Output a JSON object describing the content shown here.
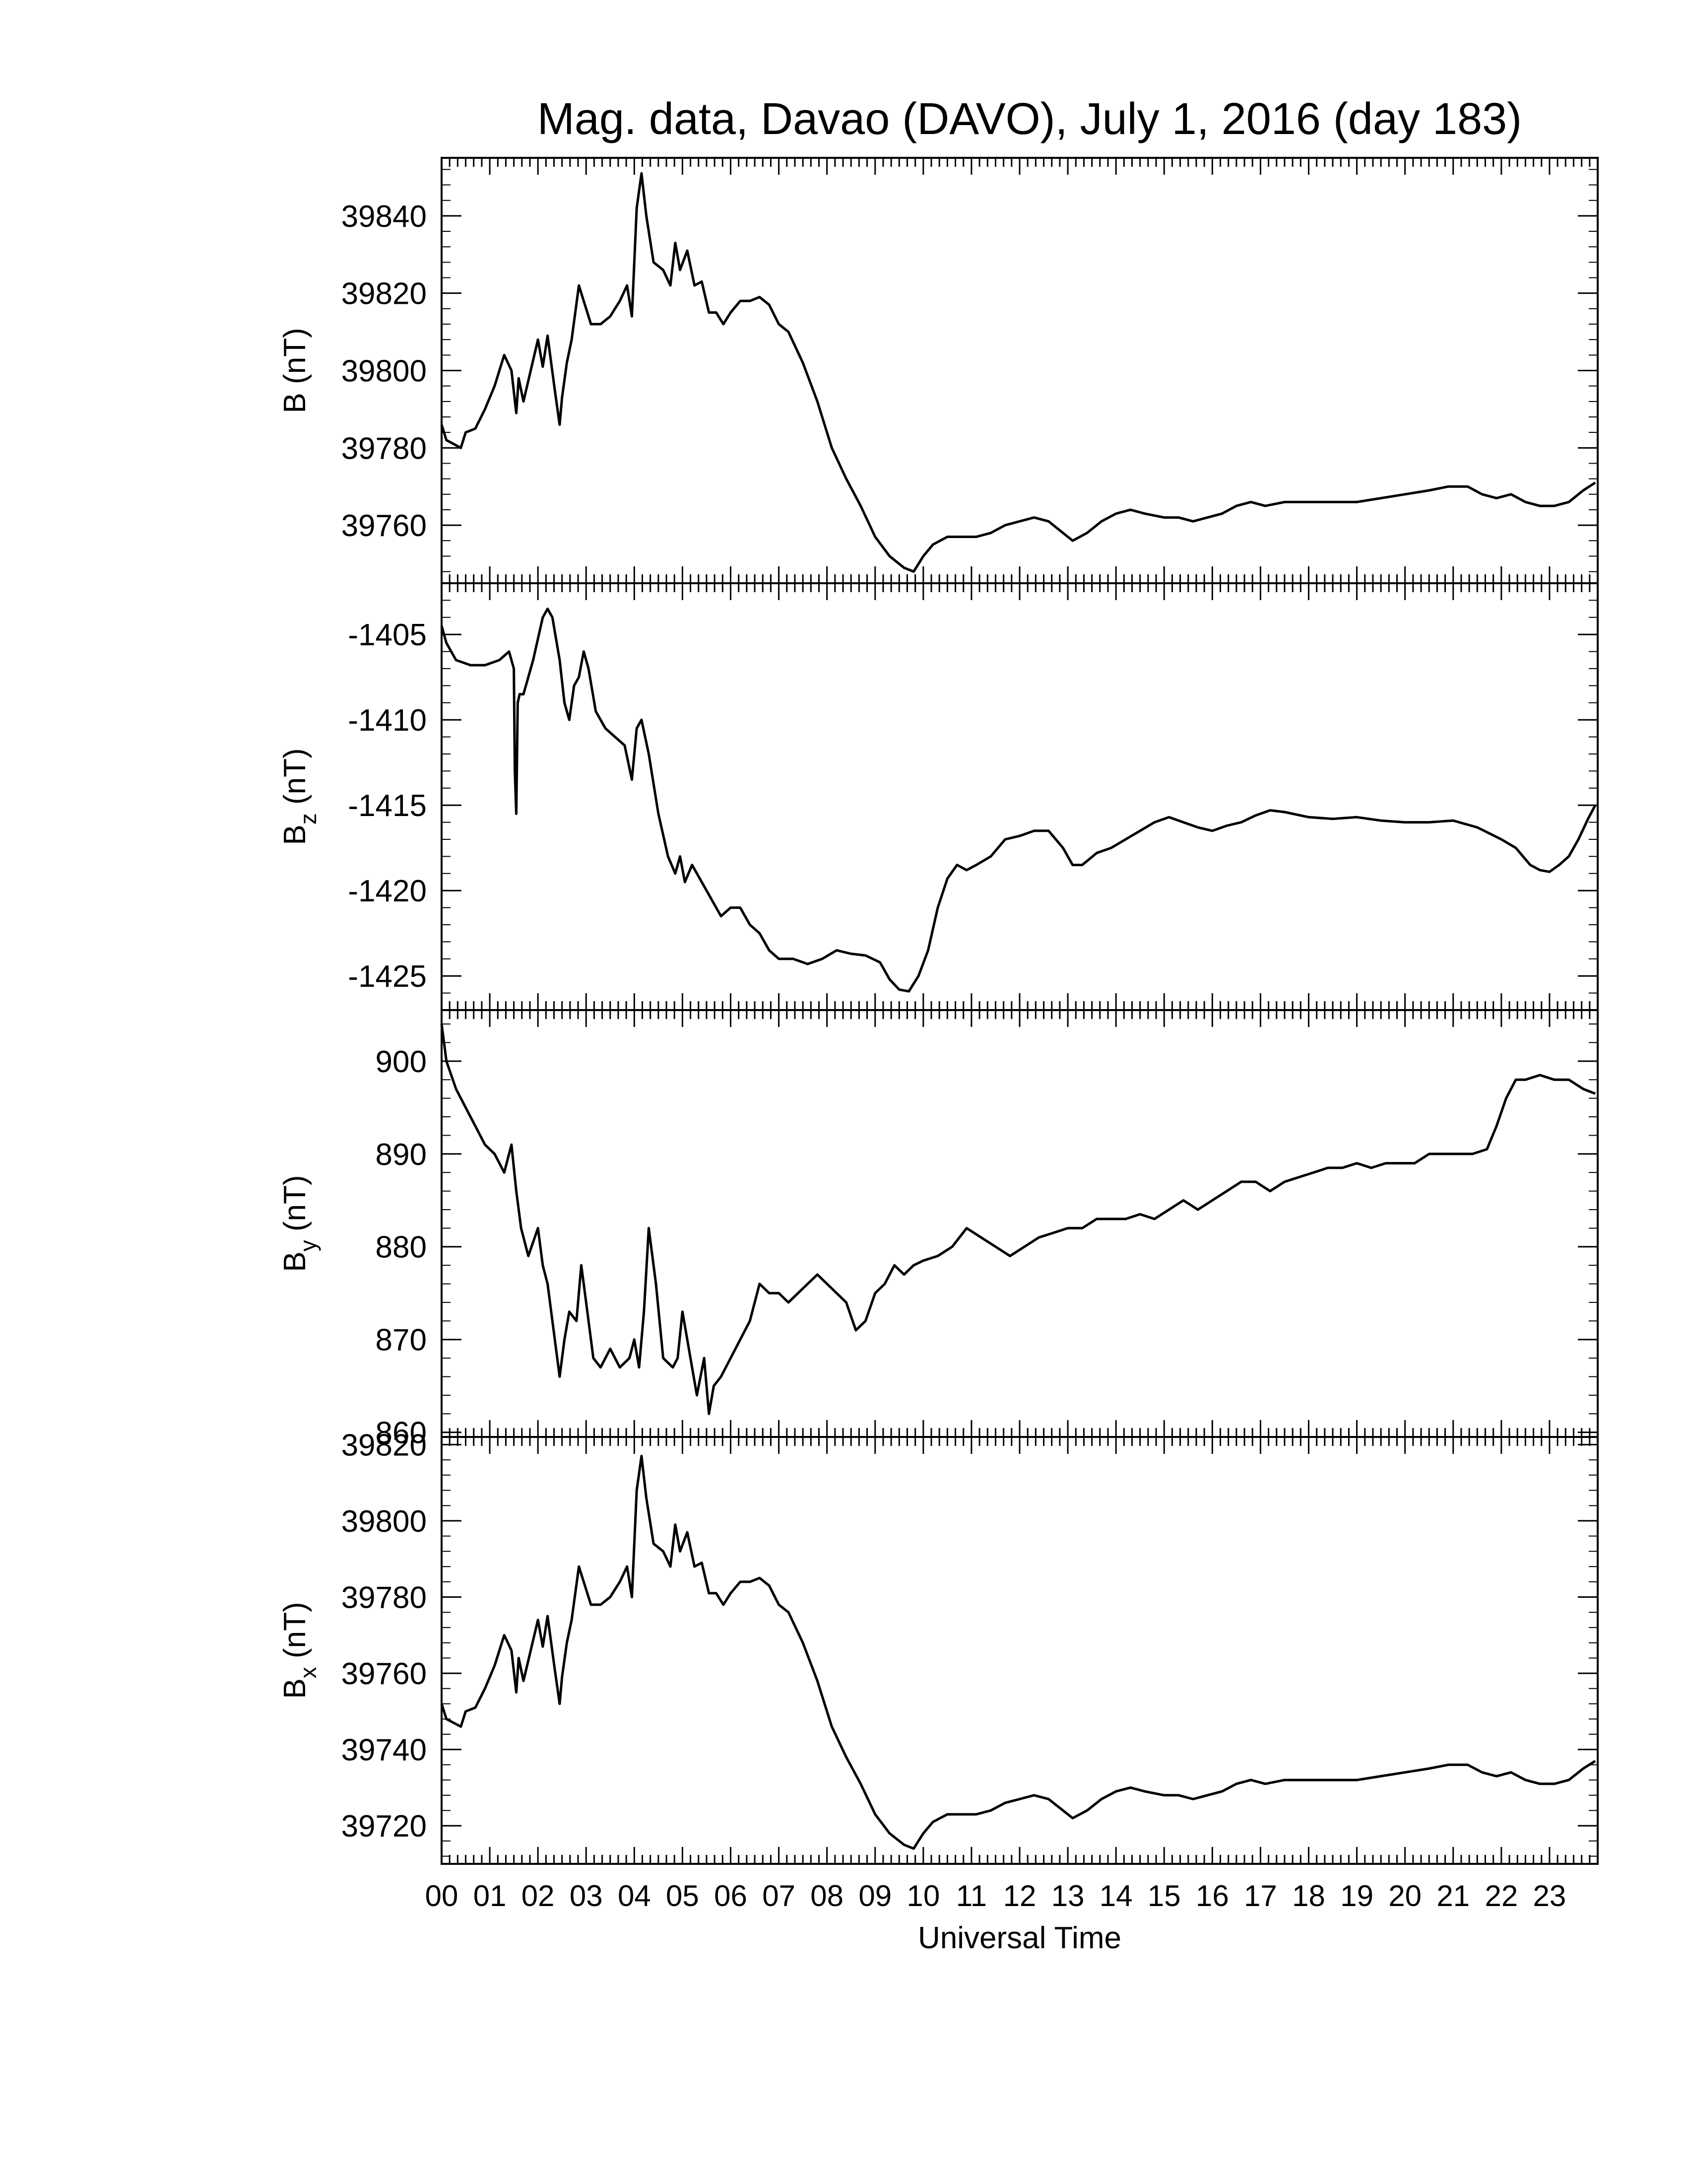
{
  "title": "Mag. data, Davao (DAVO), July 1, 2016 (day 183)",
  "chart_data": [
    {
      "type": "line",
      "ylabel": "B (nT)",
      "ylabel_base": "B",
      "ylabel_sub": "",
      "ylim": [
        39745,
        39855
      ],
      "yticks": [
        39760,
        39780,
        39800,
        39820,
        39840
      ],
      "x": [
        0,
        0.1,
        0.25,
        0.4,
        0.5,
        0.7,
        0.9,
        1.1,
        1.3,
        1.45,
        1.55,
        1.6,
        1.7,
        1.85,
        2.0,
        2.1,
        2.2,
        2.35,
        2.45,
        2.5,
        2.6,
        2.7,
        2.85,
        2.95,
        3.1,
        3.3,
        3.5,
        3.7,
        3.85,
        3.95,
        4.05,
        4.15,
        4.25,
        4.4,
        4.6,
        4.75,
        4.85,
        4.95,
        5.1,
        5.25,
        5.4,
        5.55,
        5.7,
        5.85,
        6.0,
        6.2,
        6.4,
        6.6,
        6.8,
        7.0,
        7.2,
        7.5,
        7.8,
        8.1,
        8.4,
        8.7,
        9.0,
        9.3,
        9.6,
        9.8,
        10.0,
        10.2,
        10.5,
        10.8,
        11.1,
        11.4,
        11.7,
        12.0,
        12.3,
        12.6,
        12.9,
        13.1,
        13.4,
        13.7,
        14.0,
        14.3,
        14.6,
        15.0,
        15.3,
        15.6,
        15.9,
        16.2,
        16.5,
        16.8,
        17.1,
        17.5,
        18.0,
        18.5,
        19.0,
        19.5,
        20.0,
        20.5,
        20.9,
        21.3,
        21.6,
        21.9,
        22.2,
        22.5,
        22.8,
        23.1,
        23.4,
        23.7,
        23.95
      ],
      "values": [
        39786,
        39782,
        39781,
        39780,
        39784,
        39785,
        39790,
        39796,
        39804,
        39800,
        39789,
        39798,
        39792,
        39800,
        39808,
        39801,
        39809,
        39795,
        39786,
        39793,
        39802,
        39808,
        39822,
        39818,
        39812,
        39812,
        39814,
        39818,
        39822,
        39814,
        39842,
        39851,
        39840,
        39828,
        39826,
        39822,
        39833,
        39826,
        39831,
        39822,
        39823,
        39815,
        39815,
        39812,
        39815,
        39818,
        39818,
        39819,
        39817,
        39812,
        39810,
        39802,
        39792,
        39780,
        39772,
        39765,
        39757,
        39752,
        39749,
        39748,
        39752,
        39755,
        39757,
        39757,
        39757,
        39758,
        39760,
        39761,
        39762,
        39761,
        39758,
        39756,
        39758,
        39761,
        39763,
        39764,
        39763,
        39762,
        39762,
        39761,
        39762,
        39763,
        39765,
        39766,
        39765,
        39766,
        39766,
        39766,
        39766,
        39767,
        39768,
        39769,
        39770,
        39770,
        39768,
        39767,
        39768,
        39766,
        39765,
        39765,
        39766,
        39769,
        39771
      ],
      "xlim": [
        0,
        24
      ]
    },
    {
      "type": "line",
      "ylabel": "Bz (nT)",
      "ylabel_base": "B",
      "ylabel_sub": "z",
      "ylim": [
        -1427,
        -1402
      ],
      "yticks": [
        -1425,
        -1420,
        -1415,
        -1410,
        -1405
      ],
      "x": [
        0,
        0.1,
        0.3,
        0.6,
        0.9,
        1.2,
        1.4,
        1.5,
        1.52,
        1.55,
        1.58,
        1.62,
        1.7,
        1.9,
        2.1,
        2.2,
        2.3,
        2.45,
        2.55,
        2.65,
        2.75,
        2.85,
        2.95,
        3.05,
        3.2,
        3.4,
        3.6,
        3.8,
        3.95,
        4.05,
        4.15,
        4.3,
        4.5,
        4.7,
        4.85,
        4.95,
        5.05,
        5.2,
        5.4,
        5.6,
        5.8,
        6.0,
        6.2,
        6.4,
        6.6,
        6.8,
        7.0,
        7.3,
        7.6,
        7.9,
        8.2,
        8.5,
        8.8,
        9.1,
        9.3,
        9.5,
        9.7,
        9.9,
        10.1,
        10.3,
        10.5,
        10.7,
        10.9,
        11.1,
        11.4,
        11.7,
        12.0,
        12.3,
        12.6,
        12.9,
        13.1,
        13.3,
        13.6,
        13.9,
        14.2,
        14.5,
        14.8,
        15.1,
        15.4,
        15.7,
        16.0,
        16.3,
        16.6,
        16.9,
        17.2,
        17.5,
        18.0,
        18.5,
        19.0,
        19.5,
        20.0,
        20.5,
        21.0,
        21.5,
        22.0,
        22.3,
        22.6,
        22.8,
        23.0,
        23.2,
        23.4,
        23.6,
        23.8,
        23.95
      ],
      "values": [
        -1404.5,
        -1405.5,
        -1406.5,
        -1406.8,
        -1406.8,
        -1406.5,
        -1406,
        -1407,
        -1413,
        -1415.5,
        -1409,
        -1408.5,
        -1408.5,
        -1406.5,
        -1404,
        -1403.5,
        -1404,
        -1406.5,
        -1409,
        -1410,
        -1408,
        -1407.5,
        -1406,
        -1407,
        -1409.5,
        -1410.5,
        -1411,
        -1411.5,
        -1413.5,
        -1410.5,
        -1410,
        -1412,
        -1415.5,
        -1418,
        -1419,
        -1418,
        -1419.5,
        -1418.5,
        -1419.5,
        -1420.5,
        -1421.5,
        -1421,
        -1421,
        -1422,
        -1422.5,
        -1423.5,
        -1424,
        -1424,
        -1424.3,
        -1424,
        -1423.5,
        -1423.7,
        -1423.8,
        -1424.2,
        -1425.2,
        -1425.8,
        -1425.9,
        -1425,
        -1423.5,
        -1421,
        -1419.3,
        -1418.5,
        -1418.8,
        -1418.5,
        -1418,
        -1417,
        -1416.8,
        -1416.5,
        -1416.5,
        -1417.5,
        -1418.5,
        -1418.5,
        -1417.8,
        -1417.5,
        -1417,
        -1416.5,
        -1416,
        -1415.7,
        -1416,
        -1416.3,
        -1416.5,
        -1416.2,
        -1416,
        -1415.6,
        -1415.3,
        -1415.4,
        -1415.7,
        -1415.8,
        -1415.7,
        -1415.9,
        -1416,
        -1416,
        -1415.9,
        -1416.3,
        -1417,
        -1417.5,
        -1418.5,
        -1418.8,
        -1418.9,
        -1418.5,
        -1418,
        -1417,
        -1415.8,
        -1415
      ],
      "xlim": [
        0,
        24
      ]
    },
    {
      "type": "line",
      "ylabel": "By (nT)",
      "ylabel_base": "B",
      "ylabel_sub": "y",
      "ylim": [
        859.5,
        905.5
      ],
      "yticks": [
        860,
        870,
        880,
        890,
        900
      ],
      "x": [
        0,
        0.1,
        0.3,
        0.5,
        0.7,
        0.9,
        1.1,
        1.3,
        1.45,
        1.55,
        1.65,
        1.8,
        2.0,
        2.1,
        2.2,
        2.3,
        2.45,
        2.55,
        2.65,
        2.8,
        2.9,
        3.0,
        3.15,
        3.3,
        3.5,
        3.7,
        3.9,
        4.0,
        4.1,
        4.2,
        4.3,
        4.45,
        4.6,
        4.8,
        4.9,
        5.0,
        5.1,
        5.2,
        5.3,
        5.45,
        5.55,
        5.65,
        5.8,
        6.0,
        6.2,
        6.4,
        6.6,
        6.8,
        7.0,
        7.2,
        7.4,
        7.6,
        7.8,
        8.0,
        8.2,
        8.4,
        8.6,
        8.8,
        9.0,
        9.2,
        9.4,
        9.6,
        9.8,
        10.0,
        10.3,
        10.6,
        10.9,
        11.2,
        11.5,
        11.8,
        12.1,
        12.4,
        12.7,
        13.0,
        13.3,
        13.6,
        13.9,
        14.2,
        14.5,
        14.8,
        15.1,
        15.4,
        15.7,
        16.0,
        16.3,
        16.6,
        16.9,
        17.2,
        17.5,
        17.8,
        18.1,
        18.4,
        18.7,
        19.0,
        19.3,
        19.6,
        19.9,
        20.2,
        20.5,
        20.8,
        21.1,
        21.4,
        21.7,
        21.9,
        22.1,
        22.3,
        22.5,
        22.8,
        23.1,
        23.4,
        23.7,
        23.95
      ],
      "values": [
        904,
        900,
        897,
        895,
        893,
        891,
        890,
        888,
        891,
        886,
        882,
        879,
        882,
        878,
        876,
        872,
        866,
        870,
        873,
        872,
        878,
        874,
        868,
        867,
        869,
        867,
        868,
        870,
        867,
        873,
        882,
        876,
        868,
        867,
        868,
        873,
        870,
        867,
        864,
        868,
        862,
        865,
        866,
        868,
        870,
        872,
        876,
        875,
        875,
        874,
        875,
        876,
        877,
        876,
        875,
        874,
        871,
        872,
        875,
        876,
        878,
        877,
        878,
        878.5,
        879,
        880,
        882,
        881,
        880,
        879,
        880,
        881,
        881.5,
        882,
        882,
        883,
        883,
        883,
        883.5,
        883,
        884,
        885,
        884,
        885,
        886,
        887,
        887,
        886,
        887,
        887.5,
        888,
        888.5,
        888.5,
        889,
        888.5,
        889,
        889,
        889,
        890,
        890,
        890,
        890,
        890.5,
        893,
        896,
        898,
        898,
        898.5,
        898,
        898,
        897,
        896.5
      ],
      "xlim": [
        0,
        24
      ]
    },
    {
      "type": "line",
      "ylabel": "Bx (nT)",
      "ylabel_base": "B",
      "ylabel_sub": "x",
      "ylim": [
        39710,
        39822
      ],
      "yticks": [
        39720,
        39740,
        39760,
        39780,
        39800,
        39820
      ],
      "x": [
        0,
        0.1,
        0.25,
        0.4,
        0.5,
        0.7,
        0.9,
        1.1,
        1.3,
        1.45,
        1.55,
        1.6,
        1.7,
        1.85,
        2.0,
        2.1,
        2.2,
        2.35,
        2.45,
        2.5,
        2.6,
        2.7,
        2.85,
        2.95,
        3.1,
        3.3,
        3.5,
        3.7,
        3.85,
        3.95,
        4.05,
        4.15,
        4.25,
        4.4,
        4.6,
        4.75,
        4.85,
        4.95,
        5.1,
        5.25,
        5.4,
        5.55,
        5.7,
        5.85,
        6.0,
        6.2,
        6.4,
        6.6,
        6.8,
        7.0,
        7.2,
        7.5,
        7.8,
        8.1,
        8.4,
        8.7,
        9.0,
        9.3,
        9.6,
        9.8,
        10.0,
        10.2,
        10.5,
        10.8,
        11.1,
        11.4,
        11.7,
        12.0,
        12.3,
        12.6,
        12.9,
        13.1,
        13.4,
        13.7,
        14.0,
        14.3,
        14.6,
        15.0,
        15.3,
        15.6,
        15.9,
        16.2,
        16.5,
        16.8,
        17.1,
        17.5,
        18.0,
        18.5,
        19.0,
        19.5,
        20.0,
        20.5,
        20.9,
        21.3,
        21.6,
        21.9,
        22.2,
        22.5,
        22.8,
        23.1,
        23.4,
        23.7,
        23.95
      ],
      "values": [
        39752,
        39748,
        39747,
        39746,
        39750,
        39751,
        39756,
        39762,
        39770,
        39766,
        39755,
        39764,
        39758,
        39766,
        39774,
        39767,
        39775,
        39761,
        39752,
        39759,
        39768,
        39774,
        39788,
        39784,
        39778,
        39778,
        39780,
        39784,
        39788,
        39780,
        39808,
        39817,
        39806,
        39794,
        39792,
        39788,
        39799,
        39792,
        39797,
        39788,
        39789,
        39781,
        39781,
        39778,
        39781,
        39784,
        39784,
        39785,
        39783,
        39778,
        39776,
        39768,
        39758,
        39746,
        39738,
        39731,
        39723,
        39718,
        39715,
        39714,
        39718,
        39721,
        39723,
        39723,
        39723,
        39724,
        39726,
        39727,
        39728,
        39727,
        39724,
        39722,
        39724,
        39727,
        39729,
        39730,
        39729,
        39728,
        39728,
        39727,
        39728,
        39729,
        39731,
        39732,
        39731,
        39732,
        39732,
        39732,
        39732,
        39733,
        39734,
        39735,
        39736,
        39736,
        39734,
        39733,
        39734,
        39732,
        39731,
        39731,
        39732,
        39735,
        39737
      ],
      "xlim": [
        0,
        24
      ]
    }
  ],
  "xaxis": {
    "label": "Universal Time",
    "tick_labels": [
      "00",
      "01",
      "02",
      "03",
      "04",
      "05",
      "06",
      "07",
      "08",
      "09",
      "10",
      "11",
      "12",
      "13",
      "14",
      "15",
      "16",
      "17",
      "18",
      "19",
      "20",
      "21",
      "22",
      "23"
    ]
  }
}
